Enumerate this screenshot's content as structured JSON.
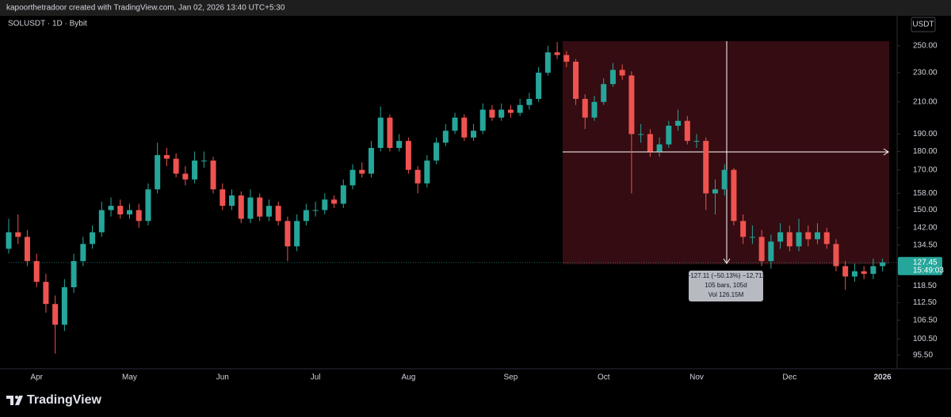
{
  "header": {
    "attribution": "kapoorthetradoor created with TradingView.com, Jan 02, 2026 13:40 UTC+5:30"
  },
  "chart_data": {
    "type": "candlestick",
    "title": "SOLUSDT · 1D · Bybit",
    "currency": "USDT",
    "log_scale": true,
    "up_color": "#26a69a",
    "down_color": "#ef5350",
    "categories": [
      null,
      null,
      null,
      "Apr",
      null,
      null,
      null,
      null,
      null,
      null,
      null,
      null,
      null,
      "May",
      null,
      null,
      null,
      null,
      null,
      null,
      null,
      null,
      null,
      "Jun",
      null,
      null,
      null,
      null,
      null,
      null,
      null,
      null,
      null,
      "Jul",
      null,
      null,
      null,
      null,
      null,
      null,
      null,
      null,
      null,
      "Aug",
      null,
      null,
      null,
      null,
      null,
      null,
      null,
      null,
      null,
      null,
      "Sep",
      null,
      null,
      null,
      null,
      null,
      null,
      null,
      null,
      null,
      "Oct",
      null,
      null,
      null,
      null,
      null,
      null,
      null,
      null,
      null,
      "Nov",
      null,
      null,
      null,
      null,
      null,
      null,
      null,
      null,
      null,
      "Dec",
      null,
      null,
      null,
      null,
      null,
      null,
      null,
      null,
      null,
      "2026"
    ],
    "open": [
      133,
      140,
      138,
      128,
      120,
      112,
      105,
      118,
      128,
      135,
      140,
      150,
      152,
      148,
      150,
      145,
      160,
      178,
      176,
      168,
      165,
      175,
      175,
      160,
      152,
      157,
      146,
      156,
      147,
      152,
      145,
      134,
      145,
      150,
      150,
      155,
      153,
      162,
      170,
      168,
      182,
      200,
      182,
      186,
      170,
      163,
      175,
      185,
      192,
      200,
      188,
      192,
      205,
      200,
      205,
      203,
      208,
      212,
      230,
      245,
      243,
      238,
      212,
      200,
      210,
      222,
      232,
      228,
      190,
      190,
      180,
      184,
      195,
      198,
      186,
      186,
      158,
      160,
      170,
      145,
      138,
      138,
      128,
      136,
      140,
      134,
      140,
      137,
      140,
      135,
      126,
      122,
      124,
      123,
      126
    ],
    "high": [
      146,
      148,
      141,
      131,
      123,
      115,
      121,
      131,
      138,
      143,
      154,
      156,
      155,
      153,
      153,
      163,
      185,
      182,
      179,
      172,
      180,
      180,
      177,
      163,
      160,
      159,
      160,
      158,
      155,
      154,
      147,
      148,
      153,
      154,
      158,
      157,
      165,
      173,
      174,
      186,
      207,
      202,
      190,
      188,
      172,
      178,
      188,
      196,
      203,
      202,
      196,
      209,
      208,
      209,
      208,
      212,
      216,
      234,
      250,
      253,
      246,
      240,
      215,
      214,
      226,
      237,
      236,
      231,
      196,
      193,
      188,
      198,
      205,
      201,
      190,
      188,
      165,
      173,
      171,
      148,
      143,
      141,
      139,
      144,
      143,
      146,
      143,
      144,
      142,
      137,
      128,
      127,
      126,
      129,
      129
    ],
    "low": [
      131,
      135,
      126,
      118,
      109,
      96,
      103,
      116,
      126,
      133,
      138,
      147,
      146,
      146,
      142,
      143,
      158,
      172,
      166,
      162,
      163,
      171,
      158,
      150,
      150,
      144,
      144,
      145,
      145,
      143,
      128,
      132,
      143,
      147,
      148,
      151,
      151,
      160,
      166,
      166,
      180,
      180,
      180,
      168,
      158,
      161,
      173,
      183,
      190,
      186,
      186,
      190,
      198,
      198,
      200,
      201,
      205,
      210,
      228,
      240,
      234,
      208,
      193,
      198,
      208,
      220,
      225,
      158,
      185,
      177,
      177,
      182,
      192,
      184,
      182,
      150,
      148,
      157,
      143,
      135,
      135,
      126,
      125,
      133,
      132,
      132,
      134,
      135,
      133,
      124,
      117,
      120,
      121,
      121,
      124
    ],
    "close": [
      140,
      138,
      128,
      120,
      112,
      105,
      118,
      128,
      135,
      140,
      150,
      152,
      148,
      150,
      145,
      160,
      178,
      176,
      168,
      165,
      175,
      175,
      160,
      152,
      157,
      146,
      156,
      147,
      152,
      145,
      134,
      145,
      150,
      150,
      155,
      153,
      162,
      170,
      168,
      182,
      200,
      182,
      186,
      170,
      163,
      175,
      185,
      192,
      200,
      188,
      192,
      205,
      200,
      205,
      203,
      208,
      212,
      230,
      245,
      243,
      238,
      212,
      200,
      210,
      222,
      232,
      228,
      190,
      190,
      180,
      184,
      195,
      198,
      186,
      186,
      158,
      160,
      170,
      145,
      138,
      138,
      128,
      136,
      140,
      134,
      140,
      137,
      140,
      135,
      126,
      122,
      124,
      123,
      126,
      127.45
    ],
    "ylim": [
      91.8,
      274.5
    ],
    "yticks": [
      {
        "value": 250,
        "label": "250.00"
      },
      {
        "value": 230,
        "label": "230.00"
      },
      {
        "value": 210,
        "label": "210.00"
      },
      {
        "value": 190,
        "label": "190.00"
      },
      {
        "value": 180,
        "label": "180.00"
      },
      {
        "value": 170,
        "label": "170.00"
      },
      {
        "value": 158,
        "label": "158.00"
      },
      {
        "value": 150,
        "label": "150.00"
      },
      {
        "value": 142,
        "label": "142.00"
      },
      {
        "value": 134.5,
        "label": "134.50"
      },
      {
        "value": 118.5,
        "label": "118.50"
      },
      {
        "value": 112.5,
        "label": "112.50"
      },
      {
        "value": 106.5,
        "label": "106.50"
      },
      {
        "value": 100.5,
        "label": "100.50"
      },
      {
        "value": 95.5,
        "label": "95.50"
      }
    ],
    "last_price": 127.45,
    "countdown": "15:49:03"
  },
  "measure": {
    "lines": [
      "−127.11 (−50.13%) −12,711",
      "105 bars, 105d",
      "Vol 126.15M"
    ]
  },
  "footer": {
    "brand": "TradingView"
  }
}
